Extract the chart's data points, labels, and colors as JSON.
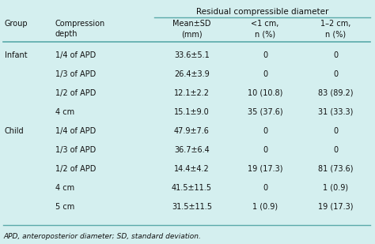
{
  "bg_color": "#d4efef",
  "title_span": "Residual compressible diameter",
  "col_headers_line1": [
    "Group",
    "Compression",
    "Mean±SD",
    "<1 cm,",
    "1–2 cm,"
  ],
  "col_headers_line2": [
    "",
    "depth",
    "(mm)",
    "n (%)",
    "n (%)"
  ],
  "rows": [
    [
      "Infant",
      "1/4 of APD",
      "33.6±5.1",
      "0",
      "0"
    ],
    [
      "",
      "1/3 of APD",
      "26.4±3.9",
      "0",
      "0"
    ],
    [
      "",
      "1/2 of APD",
      "12.1±2.2",
      "10 (10.8)",
      "83 (89.2)"
    ],
    [
      "",
      "4 cm",
      "15.1±9.0",
      "35 (37.6)",
      "31 (33.3)"
    ],
    [
      "Child",
      "1/4 of APD",
      "47.9±7.6",
      "0",
      "0"
    ],
    [
      "",
      "1/3 of APD",
      "36.7±6.4",
      "0",
      "0"
    ],
    [
      "",
      "1/2 of APD",
      "14.4±4.2",
      "19 (17.3)",
      "81 (73.6)"
    ],
    [
      "",
      "4 cm",
      "41.5±11.5",
      "0",
      "1 (0.9)"
    ],
    [
      "",
      "5 cm",
      "31.5±11.5",
      "1 (0.9)",
      "19 (17.3)"
    ]
  ],
  "footnote": "APD, anteroposterior diameter; SD, standard deviation.",
  "text_color": "#111111",
  "line_color": "#5aaaaa",
  "font_size": 7.0,
  "footnote_size": 6.5
}
